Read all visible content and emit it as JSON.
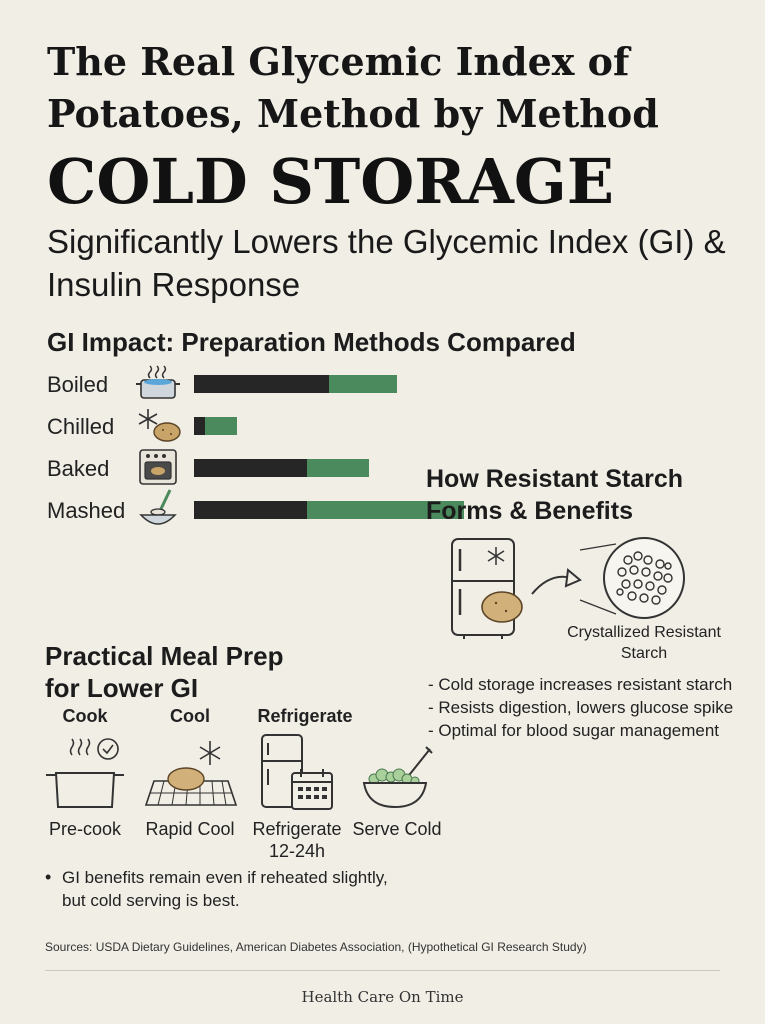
{
  "header": {
    "title": "The Real Glycemic Index of Potatoes, Method by Method",
    "headline": "COLD STORAGE",
    "subhead": "Significantly Lowers the Glycemic Index (GI) & Insulin Response"
  },
  "gi_impact": {
    "title": "GI Impact: Preparation Methods Compared",
    "rows": [
      {
        "label": "Boiled",
        "icon": "pot-steam-icon",
        "dark": 0.5,
        "green": 0.25
      },
      {
        "label": "Chilled",
        "icon": "snowflake-potato-icon",
        "dark": 0.04,
        "green": 0.12
      },
      {
        "label": "Baked",
        "icon": "oven-icon",
        "dark": 0.42,
        "green": 0.23
      },
      {
        "label": "Mashed",
        "icon": "masher-bowl-icon",
        "dark": 0.42,
        "green": 0.58
      }
    ],
    "colors": {
      "dark": "#262626",
      "green": "#4a8a5c"
    }
  },
  "resistant_starch": {
    "title": "How Resistant Starch Forms & Benefits",
    "crystal_label": "Crystallized Resistant Starch",
    "bullets": [
      "- Cold storage increases resistant starch",
      "- Resists digestion, lowers glucose spike",
      "- Optimal for blood sugar management"
    ]
  },
  "meal_prep": {
    "title_line1": "Practical Meal Prep",
    "title_line2": "for Lower GI",
    "steps": [
      {
        "head": "Cook",
        "caption": "Pre-cook",
        "icon": "pot-icon"
      },
      {
        "head": "Cool",
        "caption": "Rapid Cool",
        "icon": "cooling-rack-icon"
      },
      {
        "head": "Refrigerate",
        "caption": "Refrigerate 12-24h",
        "icon": "fridge-calendar-icon"
      },
      {
        "head": "",
        "caption": "Serve Cold",
        "icon": "salad-bowl-icon"
      }
    ],
    "note": "GI benefits remain even if reheated slightly, but cold serving is best."
  },
  "sources": "Sources: USDA Dietary Guidelines, American Diabetes Association, (Hypothetical GI Research Study)",
  "footer": "Health Care On Time"
}
